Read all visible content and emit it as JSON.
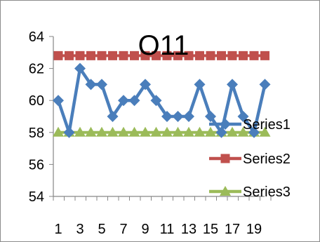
{
  "chart_data": {
    "type": "line",
    "title": "O11",
    "xlabel": "",
    "ylabel": "",
    "categories": [
      1,
      2,
      3,
      4,
      5,
      6,
      7,
      8,
      9,
      10,
      11,
      12,
      13,
      14,
      15,
      16,
      17,
      18,
      19,
      20
    ],
    "x_tick_labels": [
      "1",
      "3",
      "5",
      "7",
      "9",
      "11",
      "13",
      "15",
      "17",
      "19"
    ],
    "ylim": [
      54,
      64
    ],
    "y_tick_labels": [
      "54",
      "56",
      "58",
      "60",
      "62",
      "64"
    ],
    "grid": false,
    "legend_position": "right",
    "series": [
      {
        "name": "Series1",
        "color": "#4a7ebb",
        "marker": "diamond",
        "values": [
          60,
          58,
          62,
          61,
          61,
          59,
          60,
          60,
          61,
          60,
          59,
          59,
          59,
          61,
          59,
          58,
          61,
          59,
          58,
          61
        ]
      },
      {
        "name": "Series2",
        "color": "#c0504d",
        "marker": "square",
        "values": [
          62.8,
          62.8,
          62.8,
          62.8,
          62.8,
          62.8,
          62.8,
          62.8,
          62.8,
          62.8,
          62.8,
          62.8,
          62.8,
          62.8,
          62.8,
          62.8,
          62.8,
          62.8,
          62.8,
          62.8
        ]
      },
      {
        "name": "Series3",
        "color": "#9bbb59",
        "marker": "triangle",
        "values": [
          58,
          58,
          58,
          58,
          58,
          58,
          58,
          58,
          58,
          58,
          58,
          58,
          58,
          58,
          58,
          58,
          58,
          58,
          58,
          58
        ]
      }
    ]
  }
}
